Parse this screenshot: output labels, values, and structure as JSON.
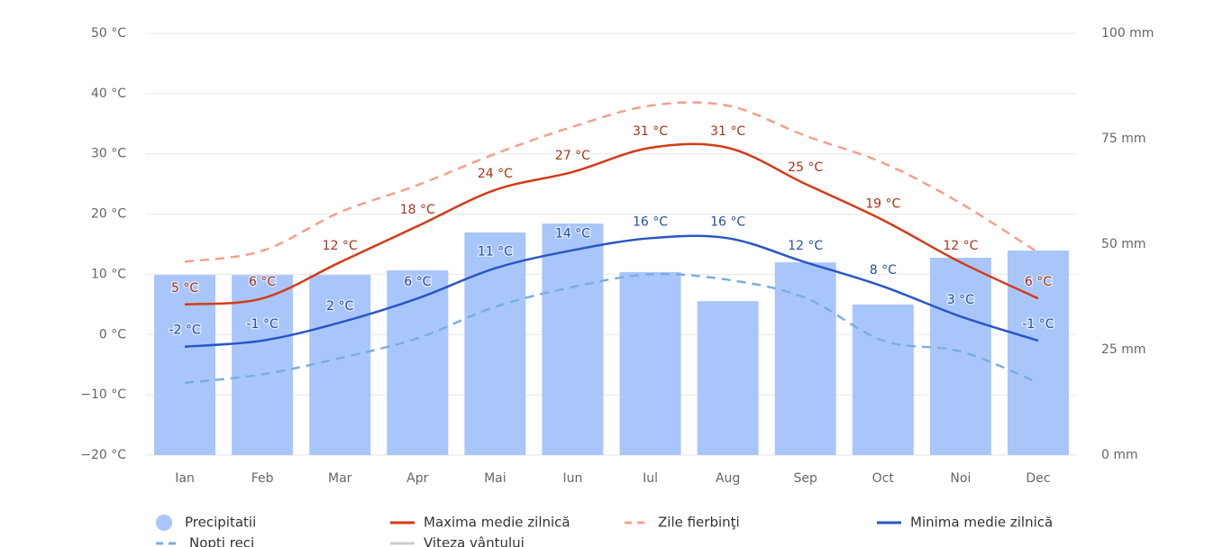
{
  "chart_data": {
    "type": "combo",
    "categories": [
      "Ian",
      "Feb",
      "Mar",
      "Apr",
      "Mai",
      "Iun",
      "Iul",
      "Aug",
      "Sep",
      "Oct",
      "Noi",
      "Dec"
    ],
    "ylim": [
      -20,
      50
    ],
    "yticks": [
      {
        "value": -20,
        "label": "−20 °C"
      },
      {
        "value": -10,
        "label": "−10 °C"
      },
      {
        "value": 0,
        "label": "0 °C"
      },
      {
        "value": 10,
        "label": "10 °C"
      },
      {
        "value": 20,
        "label": "20 °C"
      },
      {
        "value": 30,
        "label": "30 °C"
      },
      {
        "value": 40,
        "label": "40 °C"
      },
      {
        "value": 50,
        "label": "50 °C"
      }
    ],
    "y2lim": [
      0,
      100
    ],
    "y2ticks": [
      {
        "value": 0,
        "label": "0 mm"
      },
      {
        "value": 25,
        "label": "25 mm"
      },
      {
        "value": 50,
        "label": "50 mm"
      },
      {
        "value": 75,
        "label": "75 mm"
      },
      {
        "value": 100,
        "label": "100 mm"
      }
    ],
    "grid": true,
    "series": [
      {
        "name": "Precipitatii",
        "type": "bar",
        "axis": "y2",
        "color": "#a9c6fb",
        "values": [
          42.7,
          42.7,
          42.7,
          43.8,
          52.8,
          54.9,
          43.4,
          36.5,
          45.7,
          35.7,
          46.8,
          48.5
        ]
      },
      {
        "name": "Maxima medie zilnică",
        "type": "line",
        "color": "#d33b17",
        "values": [
          5,
          6,
          12,
          18,
          24,
          27,
          31,
          31,
          25,
          19,
          12,
          6
        ],
        "value_labels": [
          "5 °C",
          "6 °C",
          "12 °C",
          "18 °C",
          "24 °C",
          "27 °C",
          "31 °C",
          "31 °C",
          "25 °C",
          "19 °C",
          "12 °C",
          "6 °C"
        ]
      },
      {
        "name": "Zile fierbinţi",
        "type": "line",
        "dashed": true,
        "color": "#f4a08c",
        "values": [
          12.1,
          13.9,
          20.3,
          24.8,
          30,
          34.5,
          38,
          38,
          33,
          28.5,
          21.8,
          13.6
        ]
      },
      {
        "name": "Minima medie zilnică",
        "type": "line",
        "color": "#2a56c6",
        "values": [
          -2,
          -1,
          2,
          6,
          11,
          14,
          16,
          16,
          12,
          8,
          3,
          -1
        ],
        "value_labels": [
          "-2 °C",
          "-1 °C",
          "2 °C",
          "6 °C",
          "11 °C",
          "14 °C",
          "16 °C",
          "16 °C",
          "12 °C",
          "8 °C",
          "3 °C",
          "-1 °C"
        ]
      },
      {
        "name": "Nopti reci",
        "type": "line",
        "dashed": true,
        "color": "#7aaee0",
        "values": [
          -8,
          -6.6,
          -3.9,
          -0.6,
          4.6,
          7.9,
          10,
          9.1,
          6.1,
          -1,
          -2.8,
          -8
        ]
      },
      {
        "name": "Viteza vântului",
        "type": "line",
        "visible": false,
        "color": "#cccccc",
        "values": [
          null,
          null,
          null,
          null,
          null,
          null,
          null,
          null,
          null,
          null,
          null,
          null
        ]
      }
    ]
  }
}
